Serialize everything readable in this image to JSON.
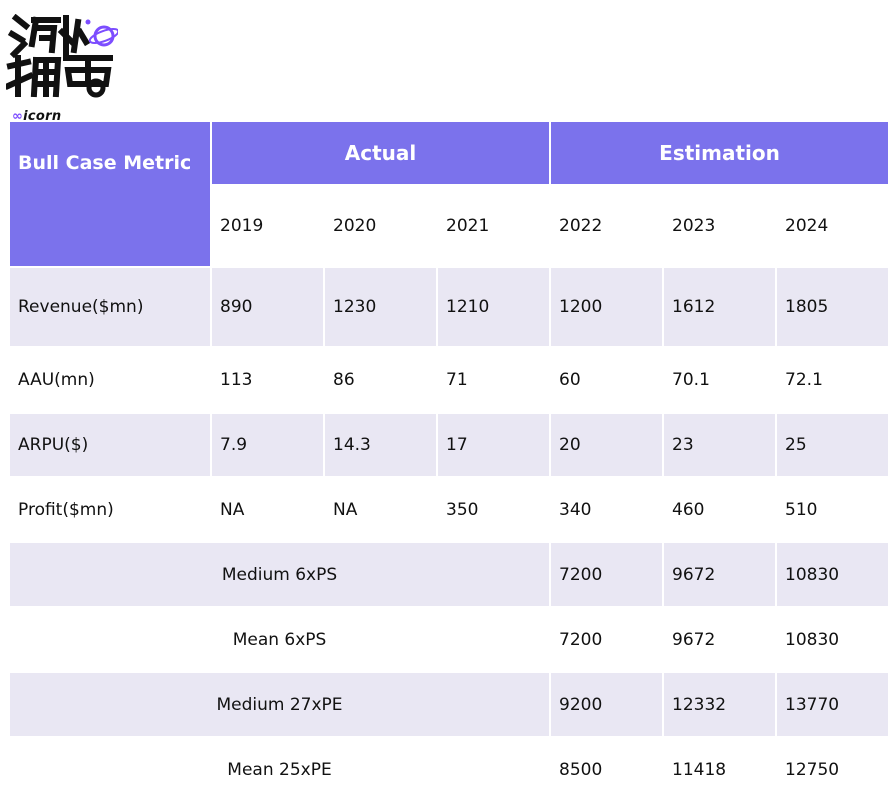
{
  "logo": {
    "glyphs": "海外独角兽",
    "wordmark": "icorn"
  },
  "table": {
    "corner_label": "Bull Case Metric",
    "groups": [
      "Actual",
      "Estimation"
    ],
    "years": [
      "2019",
      "2020",
      "2021",
      "2022",
      "2023",
      "2024"
    ],
    "metric_rows": [
      {
        "label": "Revenue($mn)",
        "values": [
          "890",
          "1230",
          "1210",
          "1200",
          "1612",
          "1805"
        ]
      },
      {
        "label": "AAU(mn)",
        "values": [
          "113",
          "86",
          "71",
          "60",
          "70.1",
          "72.1"
        ]
      },
      {
        "label": "ARPU($)",
        "values": [
          "7.9",
          "14.3",
          "17",
          "20",
          "23",
          "25"
        ]
      },
      {
        "label": "Profit($mn)",
        "values": [
          "NA",
          "NA",
          "350",
          "340",
          "460",
          "510"
        ]
      }
    ],
    "valuation_rows": [
      {
        "label": "Medium 6xPS",
        "values": [
          "7200",
          "9672",
          "10830"
        ]
      },
      {
        "label": "Mean 6xPS",
        "values": [
          "7200",
          "9672",
          "10830"
        ]
      },
      {
        "label": "Medium 27xPE",
        "values": [
          "9200",
          "12332",
          "13770"
        ]
      },
      {
        "label": "Mean 25xPE",
        "values": [
          "8500",
          "11418",
          "12750"
        ]
      }
    ]
  },
  "colors": {
    "header_bg": "#7b72ec",
    "header_text": "#ffffff",
    "row_shade": "#e9e7f3",
    "row_plain": "#ffffff"
  }
}
